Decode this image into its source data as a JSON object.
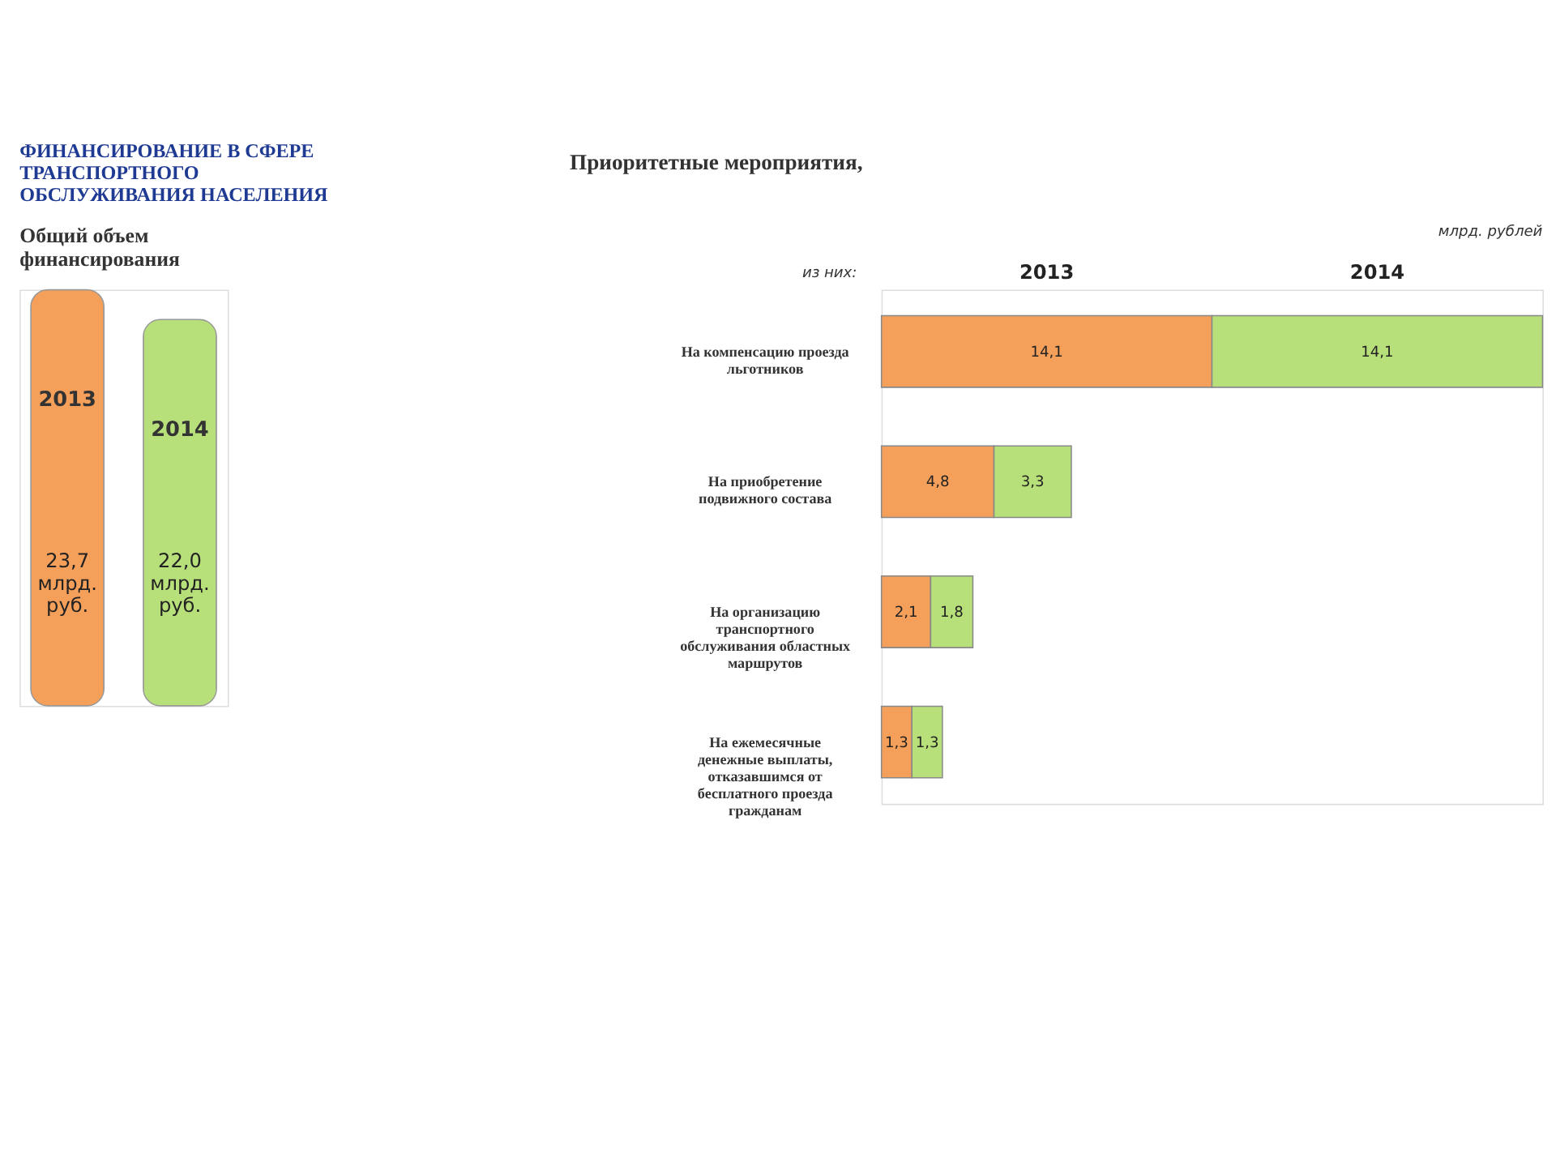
{
  "chart_data": [
    {
      "type": "bar",
      "title": "ФИНАНСИРОВАНИЕ В СФЕРЕ ТРАНСПОРТНОГО ОБСЛУЖИВАНИЯ НАСЕЛЕНИЯ",
      "subtitle": "Общий объем финансирования",
      "categories": [
        "2013",
        "2014"
      ],
      "values": [
        23.7,
        22.0
      ],
      "colors": [
        "#f5a05a",
        "#b8e07a"
      ],
      "value_labels": [
        "23,7 млрд. руб.",
        "22,0 млрд. руб."
      ]
    },
    {
      "type": "bar",
      "orientation": "horizontal",
      "stacked": true,
      "title": "Приоритетные мероприятия,",
      "annotations": [
        "млрд. рублей",
        "из них:"
      ],
      "categories": [
        "На компенсацию проезда льготников",
        "На приобретение подвижного состава",
        "На организацию транспортного обслуживания областных маршрутов",
        "На ежемесячные денежные выплаты, отказавшимся от бесплатного проезда гражданам"
      ],
      "series": [
        {
          "name": "2013",
          "color": "#f5a05a",
          "values": [
            14.1,
            4.8,
            2.1,
            1.3
          ],
          "value_labels": [
            "14,1",
            "4,8",
            "2,1",
            "1,3"
          ]
        },
        {
          "name": "2014",
          "color": "#b8e07a",
          "values": [
            14.1,
            3.3,
            1.8,
            1.3
          ],
          "value_labels": [
            "14,1",
            "3,3",
            "1,8",
            "1,3"
          ]
        }
      ]
    }
  ]
}
